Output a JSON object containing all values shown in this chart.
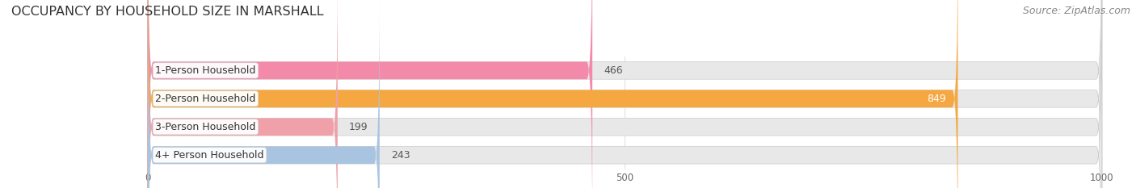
{
  "title": "OCCUPANCY BY HOUSEHOLD SIZE IN MARSHALL",
  "source": "Source: ZipAtlas.com",
  "categories": [
    "1-Person Household",
    "2-Person Household",
    "3-Person Household",
    "4+ Person Household"
  ],
  "values": [
    466,
    849,
    199,
    243
  ],
  "bar_colors": [
    "#f48aaa",
    "#f5a742",
    "#f0a0a8",
    "#a8c4e0"
  ],
  "bar_bg_color": "#e8e8e8",
  "xlim": [
    0,
    1000
  ],
  "xticks": [
    0,
    500,
    1000
  ],
  "title_fontsize": 11.5,
  "label_fontsize": 9,
  "value_fontsize": 9,
  "source_fontsize": 9,
  "background_color": "#ffffff"
}
